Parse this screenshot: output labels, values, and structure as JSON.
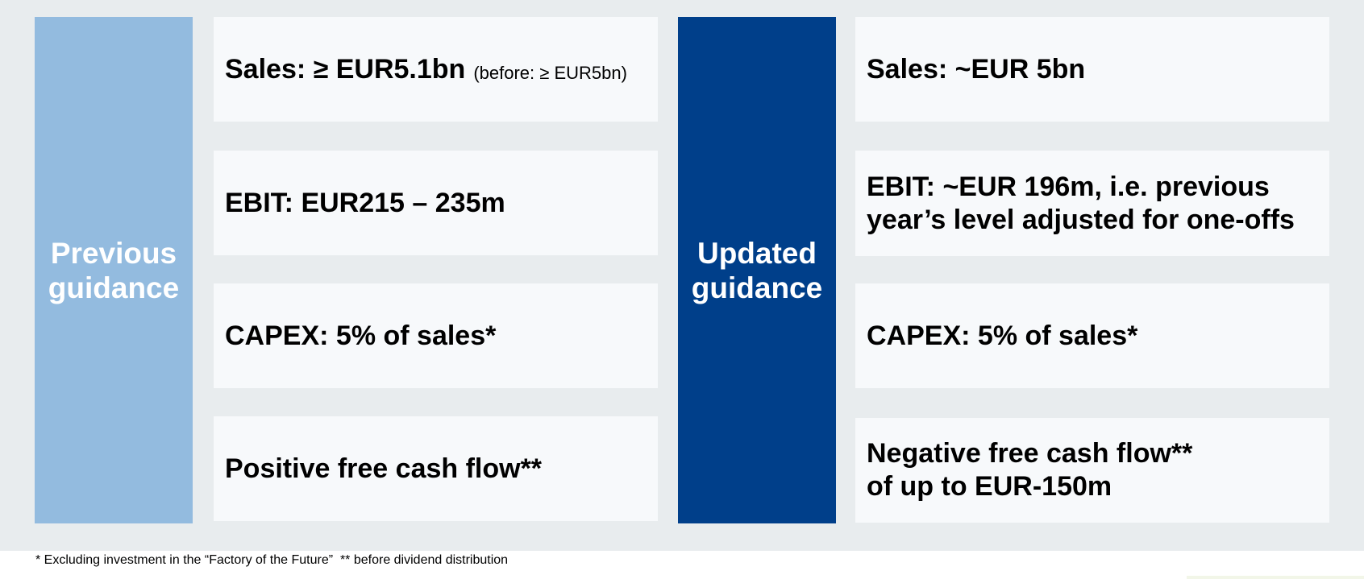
{
  "previous": {
    "heading": "Previous\nguidance",
    "items": [
      {
        "text": "Sales: ≥ EUR5.1bn",
        "note": "(before: ≥ EUR5bn)"
      },
      {
        "text": "EBIT: EUR215 – 235m"
      },
      {
        "text": "CAPEX: 5% of sales*"
      },
      {
        "text": "Positive free cash flow**"
      }
    ]
  },
  "updated": {
    "heading": "Updated\nguidance",
    "items": [
      {
        "text": "Sales: ~EUR 5bn"
      },
      {
        "text": "EBIT: ~EUR 196m, i.e. previous\nyear’s level adjusted for one-offs"
      },
      {
        "text": "CAPEX: 5% of sales*"
      },
      {
        "text": "Negative free cash flow**\nof up to EUR-150m"
      }
    ]
  },
  "footnote": "* Excluding investment in the “Factory of the Future”  ** before dividend distribution",
  "colors": {
    "previous_accent": "#93bbdf",
    "updated_accent": "#003f8a",
    "background": "#e8ecee",
    "card": "#f7f9fb"
  }
}
